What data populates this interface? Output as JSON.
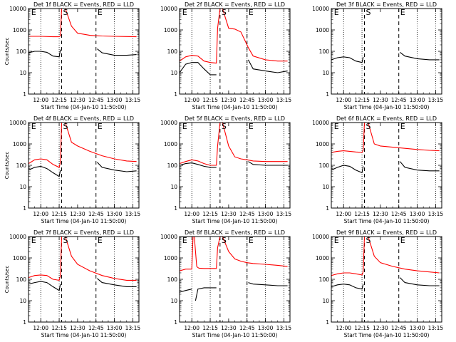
{
  "chart_data": [
    {
      "type": "line",
      "title": "Det 1f BLACK = Events, RED = LLD",
      "xlabel": "Start Time (04-Jan-10 11:50:00)",
      "ylabel": "Counts/sec",
      "y_scale": "log",
      "ylim": [
        1,
        10000
      ],
      "xlim_min": [
        0,
        90
      ],
      "x_ticks": [
        "12:00",
        "12:15",
        "12:30",
        "12:45",
        "13:00",
        "13:15"
      ],
      "x_tick_min": [
        10,
        25,
        40,
        55,
        70,
        85
      ],
      "dotted_min": [
        10,
        25,
        70,
        85
      ],
      "dashed_min": [
        27,
        55
      ],
      "markers": [
        {
          "text": "E",
          "at_min": 1
        },
        {
          "text": "S",
          "at_min": 27
        },
        {
          "text": "E",
          "at_min": 55
        }
      ],
      "series": [
        {
          "color": "#ff0000",
          "x_min": [
            0,
            10,
            20,
            25,
            26,
            27,
            28,
            30,
            35,
            40,
            50,
            60,
            70,
            80,
            88
          ],
          "y": [
            500,
            500,
            480,
            480,
            530,
            10000,
            10000,
            10000,
            1500,
            700,
            560,
            520,
            500,
            490,
            480
          ]
        },
        {
          "color": "#000000",
          "x_min": [
            0,
            5,
            10,
            15,
            20,
            25,
            26,
            27,
            55,
            56,
            60,
            70,
            80,
            88
          ],
          "y": [
            85,
            100,
            100,
            90,
            60,
            55,
            120,
            null,
            null,
            130,
            85,
            65,
            65,
            70
          ]
        }
      ]
    },
    {
      "type": "line",
      "title": "Det 2f BLACK = Events, RED = LLD",
      "xlabel": "Start Time (04-Jan-10 11:50:00)",
      "ylabel": "",
      "y_scale": "log",
      "ylim": [
        1,
        10000
      ],
      "xlim_min": [
        0,
        90
      ],
      "x_ticks": [
        "12:00",
        "12:15",
        "12:30",
        "12:45",
        "13:00",
        "13:15"
      ],
      "x_tick_min": [
        10,
        25,
        40,
        55,
        70,
        85
      ],
      "dotted_min": [
        10,
        25,
        55,
        70,
        85
      ],
      "dashed_min": [
        33,
        55
      ],
      "markers": [
        {
          "text": "E",
          "at_min": 1
        },
        {
          "text": "S",
          "at_min": 33
        },
        {
          "text": "E",
          "at_min": 55
        }
      ],
      "series": [
        {
          "color": "#ff0000",
          "x_min": [
            0,
            5,
            10,
            15,
            20,
            25,
            30,
            31,
            33,
            35,
            40,
            45,
            50,
            55,
            56,
            60,
            70,
            80,
            88
          ],
          "y": [
            35,
            55,
            65,
            60,
            35,
            30,
            28,
            1200,
            10000,
            10000,
            1200,
            1100,
            800,
            200,
            150,
            60,
            40,
            35,
            35
          ]
        },
        {
          "color": "#000000",
          "x_min": [
            0,
            5,
            10,
            15,
            20,
            25,
            30,
            31,
            33,
            55,
            56,
            60,
            70,
            80,
            88
          ],
          "y": [
            10,
            25,
            30,
            30,
            15,
            8,
            8,
            null,
            null,
            null,
            40,
            15,
            12,
            10,
            12
          ]
        }
      ]
    },
    {
      "type": "line",
      "title": "Det 3f BLACK = Events, RED = LLD",
      "xlabel": "Start Time (04-Jan-10 11:50:00)",
      "ylabel": "",
      "y_scale": "log",
      "ylim": [
        1,
        10000
      ],
      "xlim_min": [
        0,
        90
      ],
      "x_ticks": [
        "12:00",
        "12:15",
        "12:30",
        "12:45",
        "13:00",
        "13:15"
      ],
      "x_tick_min": [
        10,
        25,
        40,
        55,
        70,
        85
      ],
      "dotted_min": [
        10,
        25,
        70,
        85
      ],
      "dashed_min": [
        27,
        55
      ],
      "markers": [
        {
          "text": "E",
          "at_min": 1
        },
        {
          "text": "S",
          "at_min": 27
        },
        {
          "text": "E",
          "at_min": 55
        }
      ],
      "series": [
        {
          "color": "#000000",
          "x_min": [
            0,
            5,
            10,
            15,
            20,
            25,
            26,
            27,
            55,
            56,
            60,
            70,
            80,
            88
          ],
          "y": [
            40,
            50,
            55,
            50,
            35,
            30,
            55,
            null,
            null,
            90,
            60,
            45,
            40,
            40
          ]
        }
      ]
    },
    {
      "type": "line",
      "title": "Det 4f BLACK = Events, RED = LLD",
      "xlabel": "Start Time (04-Jan-10 11:50:00)",
      "ylabel": "Counts/sec",
      "y_scale": "log",
      "ylim": [
        1,
        10000
      ],
      "xlim_min": [
        0,
        90
      ],
      "x_ticks": [
        "12:00",
        "12:15",
        "12:30",
        "12:45",
        "13:00",
        "13:15"
      ],
      "x_tick_min": [
        10,
        25,
        40,
        55,
        70,
        85
      ],
      "dotted_min": [
        10,
        25,
        70,
        85
      ],
      "dashed_min": [
        27,
        55
      ],
      "markers": [
        {
          "text": "E",
          "at_min": 1
        },
        {
          "text": "S",
          "at_min": 27
        },
        {
          "text": "E",
          "at_min": 55
        }
      ],
      "series": [
        {
          "color": "#ff0000",
          "x_min": [
            0,
            5,
            10,
            15,
            20,
            25,
            26,
            27,
            28,
            30,
            35,
            40,
            50,
            60,
            70,
            80,
            88
          ],
          "y": [
            120,
            180,
            200,
            180,
            110,
            80,
            140,
            10000,
            10000,
            10000,
            1200,
            800,
            450,
            280,
            200,
            160,
            150
          ]
        },
        {
          "color": "#000000",
          "x_min": [
            0,
            5,
            10,
            15,
            20,
            25,
            26,
            27,
            55,
            56,
            60,
            70,
            80,
            88
          ],
          "y": [
            60,
            80,
            90,
            70,
            45,
            30,
            60,
            null,
            null,
            140,
            80,
            60,
            50,
            55
          ]
        }
      ]
    },
    {
      "type": "line",
      "title": "Det 5f BLACK = Events, RED = LLD",
      "xlabel": "Start Time (04-Jan-10 11:50:00)",
      "ylabel": "",
      "y_scale": "log",
      "ylim": [
        1,
        10000
      ],
      "xlim_min": [
        0,
        90
      ],
      "x_ticks": [
        "12:00",
        "12:15",
        "12:30",
        "12:45",
        "13:00",
        "13:15"
      ],
      "x_tick_min": [
        10,
        25,
        40,
        55,
        70,
        85
      ],
      "dotted_min": [
        10,
        25,
        55,
        70,
        85
      ],
      "dashed_min": [
        33,
        55
      ],
      "markers": [
        {
          "text": "E",
          "at_min": 1
        },
        {
          "text": "S",
          "at_min": 33
        },
        {
          "text": "E",
          "at_min": 55
        }
      ],
      "series": [
        {
          "color": "#ff0000",
          "x_min": [
            0,
            5,
            10,
            15,
            20,
            25,
            30,
            31,
            33,
            35,
            40,
            45,
            50,
            55,
            60,
            70,
            80,
            88
          ],
          "y": [
            120,
            150,
            180,
            160,
            120,
            100,
            100,
            800,
            10000,
            10000,
            800,
            250,
            200,
            180,
            160,
            150,
            150,
            150
          ]
        },
        {
          "color": "#000000",
          "x_min": [
            0,
            5,
            10,
            15,
            20,
            25,
            30,
            31,
            33,
            55,
            56,
            60,
            70,
            80,
            88
          ],
          "y": [
            100,
            120,
            130,
            110,
            90,
            80,
            80,
            null,
            null,
            null,
            150,
            110,
            100,
            100,
            100
          ]
        }
      ]
    },
    {
      "type": "line",
      "title": "Det 6f BLACK = Events, RED = LLD",
      "xlabel": "Start Time (04-Jan-10 11:50:00)",
      "ylabel": "",
      "y_scale": "log",
      "ylim": [
        1,
        10000
      ],
      "xlim_min": [
        0,
        90
      ],
      "x_ticks": [
        "12:00",
        "12:15",
        "12:30",
        "12:45",
        "13:00",
        "13:15"
      ],
      "x_tick_min": [
        10,
        25,
        40,
        55,
        70,
        85
      ],
      "dotted_min": [
        10,
        25,
        70,
        85
      ],
      "dashed_min": [
        27,
        55
      ],
      "markers": [
        {
          "text": "E",
          "at_min": 1
        },
        {
          "text": "S",
          "at_min": 27
        },
        {
          "text": "E",
          "at_min": 55
        }
      ],
      "series": [
        {
          "color": "#ff0000",
          "x_min": [
            0,
            5,
            10,
            15,
            20,
            25,
            26,
            27,
            28,
            30,
            35,
            40,
            50,
            60,
            70,
            80,
            88
          ],
          "y": [
            400,
            450,
            480,
            450,
            420,
            400,
            500,
            10000,
            10000,
            10000,
            1000,
            800,
            700,
            620,
            550,
            500,
            480
          ]
        },
        {
          "color": "#000000",
          "x_min": [
            0,
            5,
            10,
            15,
            20,
            25,
            26,
            27,
            55,
            56,
            60,
            70,
            80,
            88
          ],
          "y": [
            60,
            80,
            100,
            90,
            60,
            45,
            90,
            null,
            null,
            150,
            80,
            60,
            55,
            55
          ]
        }
      ]
    },
    {
      "type": "line",
      "title": "Det 7f BLACK = Events, RED = LLD",
      "xlabel": "Start Time (04-Jan-10 11:50:00)",
      "ylabel": "Counts/sec",
      "y_scale": "log",
      "ylim": [
        1,
        10000
      ],
      "xlim_min": [
        0,
        90
      ],
      "x_ticks": [
        "12:00",
        "12:15",
        "12:30",
        "12:45",
        "13:00",
        "13:15"
      ],
      "x_tick_min": [
        10,
        25,
        40,
        55,
        70,
        85
      ],
      "dotted_min": [
        10,
        25,
        70,
        85
      ],
      "dashed_min": [
        27,
        55
      ],
      "markers": [
        {
          "text": "E",
          "at_min": 1
        },
        {
          "text": "S",
          "at_min": 27
        },
        {
          "text": "E",
          "at_min": 55
        }
      ],
      "series": [
        {
          "color": "#ff0000",
          "x_min": [
            0,
            5,
            10,
            15,
            20,
            25,
            26,
            27,
            28,
            30,
            35,
            40,
            50,
            60,
            70,
            80,
            88
          ],
          "y": [
            120,
            150,
            160,
            150,
            100,
            90,
            150,
            10000,
            10000,
            10000,
            1200,
            500,
            250,
            150,
            110,
            90,
            90
          ]
        },
        {
          "color": "#000000",
          "x_min": [
            0,
            5,
            10,
            15,
            20,
            25,
            26,
            27,
            55,
            56,
            60,
            70,
            80,
            88
          ],
          "y": [
            60,
            70,
            80,
            70,
            45,
            30,
            60,
            null,
            null,
            110,
            70,
            55,
            45,
            45
          ]
        }
      ]
    },
    {
      "type": "line",
      "title": "Det 8f BLACK = Events, RED = LLD",
      "xlabel": "Start Time (04-Jan-10 11:50:00)",
      "ylabel": "",
      "y_scale": "log",
      "ylim": [
        1,
        10000
      ],
      "xlim_min": [
        0,
        90
      ],
      "x_ticks": [
        "12:00",
        "12:15",
        "12:30",
        "12:45",
        "13:00",
        "13:15"
      ],
      "x_tick_min": [
        10,
        25,
        40,
        55,
        70,
        85
      ],
      "dotted_min": [
        10,
        25,
        55,
        70,
        85
      ],
      "dashed_min": [
        33,
        55
      ],
      "markers": [
        {
          "text": "E",
          "at_min": 1
        },
        {
          "text": "S",
          "at_min": 33
        },
        {
          "text": "E",
          "at_min": 55
        }
      ],
      "series": [
        {
          "color": "#ff0000",
          "x_min": [
            0,
            5,
            10,
            11,
            12,
            14,
            15,
            16,
            20,
            25,
            30,
            31,
            33,
            35,
            40,
            45,
            50,
            55,
            60,
            70,
            80,
            88
          ],
          "y": [
            250,
            300,
            300,
            10000,
            10000,
            400,
            350,
            330,
            320,
            320,
            320,
            3000,
            10000,
            10000,
            2000,
            900,
            700,
            600,
            550,
            500,
            450,
            400
          ]
        },
        {
          "color": "#000000",
          "x_min": [
            0,
            5,
            10,
            11,
            12,
            13,
            15,
            20,
            25,
            30,
            31,
            33,
            55,
            56,
            60,
            70,
            80,
            88
          ],
          "y": [
            25,
            30,
            35,
            null,
            null,
            10,
            35,
            40,
            40,
            40,
            null,
            null,
            null,
            70,
            60,
            55,
            50,
            50
          ]
        }
      ]
    },
    {
      "type": "line",
      "title": "Det 9f BLACK = Events, RED = LLD",
      "xlabel": "Start Time (04-Jan-10 11:50:00)",
      "ylabel": "",
      "y_scale": "log",
      "ylim": [
        1,
        10000
      ],
      "xlim_min": [
        0,
        90
      ],
      "x_ticks": [
        "12:00",
        "12:15",
        "12:30",
        "12:45",
        "13:00",
        "13:15"
      ],
      "x_tick_min": [
        10,
        25,
        40,
        55,
        70,
        85
      ],
      "dotted_min": [
        10,
        25,
        70,
        85
      ],
      "dashed_min": [
        27,
        55
      ],
      "markers": [
        {
          "text": "E",
          "at_min": 1
        },
        {
          "text": "S",
          "at_min": 27
        },
        {
          "text": "E",
          "at_min": 55
        }
      ],
      "series": [
        {
          "color": "#ff0000",
          "x_min": [
            0,
            5,
            10,
            15,
            20,
            25,
            26,
            27,
            28,
            30,
            35,
            40,
            50,
            60,
            70,
            80,
            88
          ],
          "y": [
            150,
            180,
            200,
            200,
            180,
            160,
            230,
            10000,
            10000,
            10000,
            1200,
            600,
            400,
            300,
            250,
            220,
            200
          ]
        },
        {
          "color": "#000000",
          "x_min": [
            0,
            5,
            10,
            15,
            20,
            25,
            26,
            27,
            55,
            56,
            60,
            70,
            80,
            88
          ],
          "y": [
            45,
            55,
            60,
            55,
            40,
            35,
            60,
            null,
            null,
            120,
            70,
            55,
            50,
            50
          ]
        }
      ]
    }
  ],
  "y_tick_labels": [
    "1",
    "10",
    "100",
    "1000",
    "10000"
  ]
}
